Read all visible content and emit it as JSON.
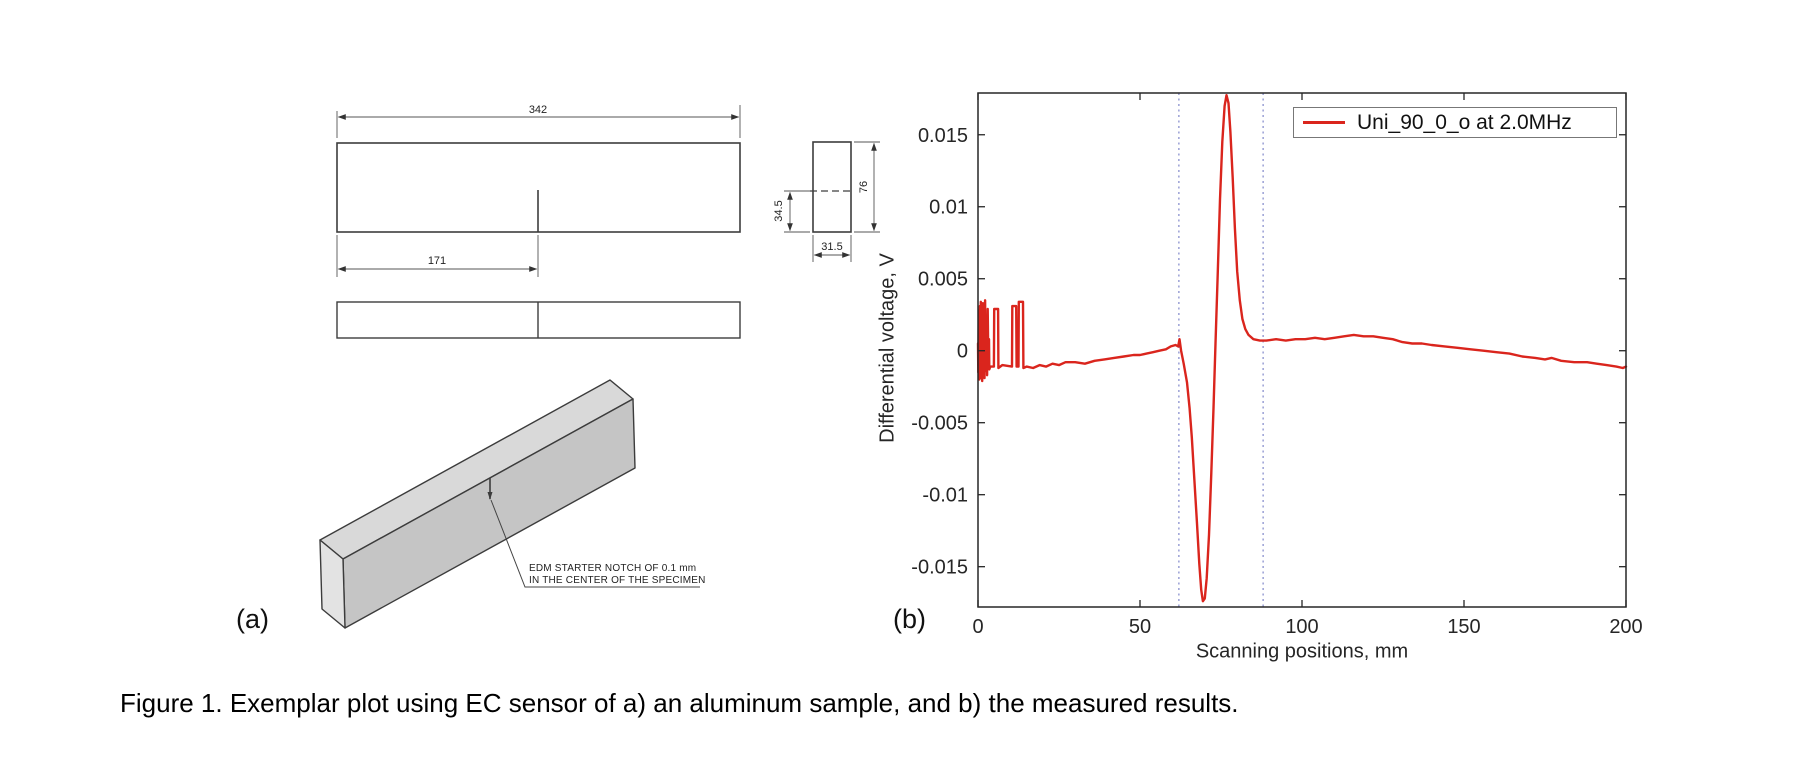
{
  "figure": {
    "caption": "Figure 1. Exemplar plot using EC sensor of a) an aluminum sample, and b) the measured results.",
    "panel_a_label": "(a)",
    "panel_b_label": "(b)"
  },
  "drawing": {
    "dim_total_length": "342",
    "dim_notch_position": "171",
    "dim_side_height_partial": "34.5",
    "dim_side_height": "76",
    "dim_side_width": "31.5",
    "notch_note_line1": "EDM STARTER NOTCH OF 0.1 mm",
    "notch_note_line2": "IN THE CENTER OF THE SPECIMEN"
  },
  "chart_data": {
    "type": "line",
    "title": "",
    "xlabel": "Scanning positions, mm",
    "ylabel": "Differential voltage, V",
    "xlim": [
      0,
      200
    ],
    "ylim": [
      -0.0178,
      0.0179
    ],
    "xticks": [
      0,
      50,
      100,
      150,
      200
    ],
    "yticks": [
      -0.015,
      -0.01,
      -0.005,
      0,
      0.005,
      0.01,
      0.015
    ],
    "grid": false,
    "axis_color": "#262626",
    "legend": {
      "position": "top-right",
      "entries": [
        {
          "label": "Uni_90_0_o at 2.0MHz",
          "color": "#da251d"
        }
      ]
    },
    "reference_lines": {
      "vertical_dashed_x": [
        62,
        88
      ],
      "color": "#8a90ce",
      "style": "dotted"
    },
    "series": [
      {
        "name": "Uni_90_0_o at 2.0MHz",
        "color": "#da251d",
        "points": [
          [
            0,
            0.0005
          ],
          [
            0.1,
            -0.0015
          ],
          [
            0.25,
            0.0028
          ],
          [
            0.4,
            -0.002
          ],
          [
            0.55,
            0.0031
          ],
          [
            0.7,
            -0.0017
          ],
          [
            0.85,
            0.0034
          ],
          [
            1.0,
            -0.0019
          ],
          [
            1.15,
            0.0027
          ],
          [
            1.3,
            -0.0021
          ],
          [
            1.5,
            0.0033
          ],
          [
            1.65,
            -0.0016
          ],
          [
            1.8,
            0.0024
          ],
          [
            2.0,
            -0.0019
          ],
          [
            2.2,
            0.0035
          ],
          [
            2.4,
            -0.0014
          ],
          [
            2.6,
            0.0021
          ],
          [
            2.8,
            -0.0017
          ],
          [
            3.0,
            0.0029
          ],
          [
            3.2,
            -0.0012
          ],
          [
            3.4,
            0.0008
          ],
          [
            3.5,
            -0.0013
          ],
          [
            3.8,
            -0.0011
          ],
          [
            4.9,
            -0.0011
          ],
          [
            5.0,
            0.0029
          ],
          [
            6.2,
            0.0029
          ],
          [
            6.3,
            -0.0012
          ],
          [
            7.5,
            -0.001
          ],
          [
            10.5,
            -0.0011
          ],
          [
            10.6,
            0.0031
          ],
          [
            11.8,
            0.0031
          ],
          [
            11.9,
            -0.0011
          ],
          [
            12.5,
            -0.0011
          ],
          [
            12.6,
            0.0034
          ],
          [
            13.9,
            0.0034
          ],
          [
            14.0,
            -0.0012
          ],
          [
            15,
            -0.0011
          ],
          [
            17,
            -0.0012
          ],
          [
            19,
            -0.001
          ],
          [
            21,
            -0.0011
          ],
          [
            23,
            -0.0009
          ],
          [
            25,
            -0.001
          ],
          [
            27,
            -0.0008
          ],
          [
            30,
            -0.0008
          ],
          [
            33,
            -0.0009
          ],
          [
            36,
            -0.0007
          ],
          [
            39,
            -0.0006
          ],
          [
            42,
            -0.0005
          ],
          [
            45,
            -0.0004
          ],
          [
            48,
            -0.0003
          ],
          [
            50,
            -0.0003
          ],
          [
            52,
            -0.0002
          ],
          [
            54,
            -0.0001
          ],
          [
            56,
            0.0
          ],
          [
            58,
            0.0001
          ],
          [
            59.5,
            0.0003
          ],
          [
            61,
            0.0004
          ],
          [
            61.8,
            0.0003
          ],
          [
            62.2,
            0.0008
          ],
          [
            62.7,
            0.0
          ],
          [
            63.5,
            -0.0009
          ],
          [
            64.5,
            -0.0022
          ],
          [
            65.3,
            -0.004
          ],
          [
            66.0,
            -0.006
          ],
          [
            66.8,
            -0.009
          ],
          [
            67.6,
            -0.012
          ],
          [
            68.3,
            -0.0148
          ],
          [
            68.9,
            -0.0166
          ],
          [
            69.4,
            -0.0174
          ],
          [
            70.0,
            -0.0172
          ],
          [
            70.6,
            -0.0158
          ],
          [
            71.3,
            -0.0128
          ],
          [
            72.0,
            -0.0085
          ],
          [
            72.7,
            -0.004
          ],
          [
            73.3,
            0.0005
          ],
          [
            74.0,
            0.0055
          ],
          [
            74.7,
            0.0105
          ],
          [
            75.4,
            0.0145
          ],
          [
            76.1,
            0.017
          ],
          [
            76.7,
            0.01775
          ],
          [
            77.3,
            0.0172
          ],
          [
            77.9,
            0.0152
          ],
          [
            78.6,
            0.012
          ],
          [
            79.3,
            0.0085
          ],
          [
            80.0,
            0.0055
          ],
          [
            80.8,
            0.0035
          ],
          [
            81.6,
            0.0022
          ],
          [
            82.5,
            0.0015
          ],
          [
            83.5,
            0.0011
          ],
          [
            85,
            0.0008
          ],
          [
            87,
            0.0007
          ],
          [
            89,
            0.0007
          ],
          [
            92,
            0.0008
          ],
          [
            95,
            0.0007
          ],
          [
            98,
            0.0008
          ],
          [
            101,
            0.0008
          ],
          [
            104,
            0.0009
          ],
          [
            107,
            0.0008
          ],
          [
            110,
            0.0009
          ],
          [
            113,
            0.001
          ],
          [
            116,
            0.0011
          ],
          [
            119,
            0.001
          ],
          [
            122,
            0.001
          ],
          [
            125,
            0.0009
          ],
          [
            128,
            0.0008
          ],
          [
            131,
            0.0006
          ],
          [
            134,
            0.0005
          ],
          [
            137,
            0.0005
          ],
          [
            140,
            0.0004
          ],
          [
            144,
            0.0003
          ],
          [
            148,
            0.0002
          ],
          [
            152,
            0.0001
          ],
          [
            156,
            0.0
          ],
          [
            160,
            -0.0001
          ],
          [
            164,
            -0.0002
          ],
          [
            168,
            -0.0004
          ],
          [
            172,
            -0.0005
          ],
          [
            175,
            -0.0006
          ],
          [
            177,
            -0.0005
          ],
          [
            180,
            -0.0007
          ],
          [
            184,
            -0.0008
          ],
          [
            188,
            -0.0008
          ],
          [
            191,
            -0.0009
          ],
          [
            194,
            -0.001
          ],
          [
            197,
            -0.0011
          ],
          [
            199,
            -0.0012
          ],
          [
            200,
            -0.0011
          ]
        ]
      }
    ]
  }
}
